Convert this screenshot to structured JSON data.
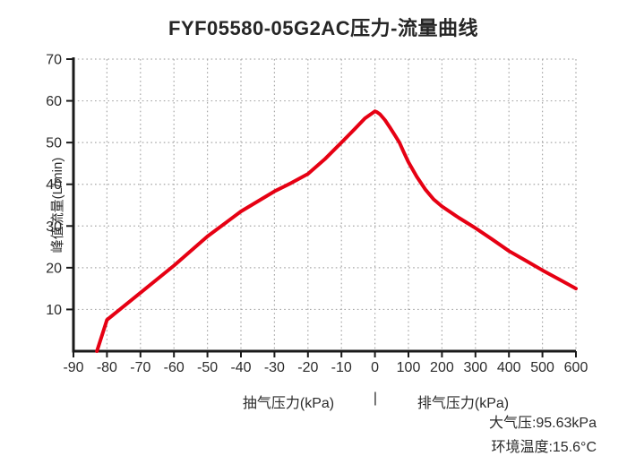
{
  "header": {
    "title": "FYF05580-05G2AC压力-流量曲线"
  },
  "footer": {
    "atmospheric_pressure": "大气压:95.63kPa",
    "ambient_temperature": "环境温度:15.6°C"
  },
  "chart_data": {
    "type": "line",
    "title": "FYF05580-05G2AC压力-流量曲线",
    "ylabel": "峰值流量(L/min)",
    "xlabel_left": "抽气压力(kPa)",
    "xlabel_separator": "|",
    "xlabel_right": "排气压力(kPa)",
    "x_ticks": [
      -90,
      -80,
      -70,
      -60,
      -50,
      -40,
      -30,
      -20,
      -10,
      0,
      100,
      200,
      300,
      400,
      500,
      600
    ],
    "y_ticks": [
      10,
      20,
      30,
      40,
      50,
      60,
      70
    ],
    "ylim": [
      0,
      70
    ],
    "axis_note": "x ticks equally spaced: -90 to 0 step 10 (抽气压力), then 100 to 600 step 100 (排气压力)",
    "grid": "dotted",
    "legend": "none",
    "colors": {
      "line": "#e60013",
      "axis": "#1a1a1a",
      "grid": "#a8a8a8",
      "text": "#2b2b2b"
    },
    "series": [
      {
        "name": "峰值流量",
        "points": [
          [
            -83,
            0
          ],
          [
            -80,
            7.5
          ],
          [
            -70,
            14
          ],
          [
            -60,
            20.5
          ],
          [
            -50,
            27.5
          ],
          [
            -40,
            33.5
          ],
          [
            -30,
            38.3
          ],
          [
            -25,
            40.3
          ],
          [
            -20,
            42.5
          ],
          [
            -15,
            46
          ],
          [
            -10,
            50
          ],
          [
            -6,
            53.3
          ],
          [
            -3,
            55.8
          ],
          [
            0,
            57.5
          ],
          [
            6,
            57.3
          ],
          [
            15,
            56.8
          ],
          [
            30,
            55.4
          ],
          [
            45,
            53.6
          ],
          [
            60,
            51.7
          ],
          [
            73,
            50
          ],
          [
            86,
            47.7
          ],
          [
            100,
            45.3
          ],
          [
            125,
            41.8
          ],
          [
            150,
            38.8
          ],
          [
            175,
            36.4
          ],
          [
            200,
            34.7
          ],
          [
            250,
            32
          ],
          [
            300,
            29.5
          ],
          [
            350,
            26.8
          ],
          [
            400,
            24
          ],
          [
            450,
            21.7
          ],
          [
            500,
            19.4
          ],
          [
            550,
            17.2
          ],
          [
            600,
            15
          ]
        ]
      }
    ],
    "annotations": [
      "大气压:95.63kPa",
      "环境温度:15.6°C"
    ]
  }
}
